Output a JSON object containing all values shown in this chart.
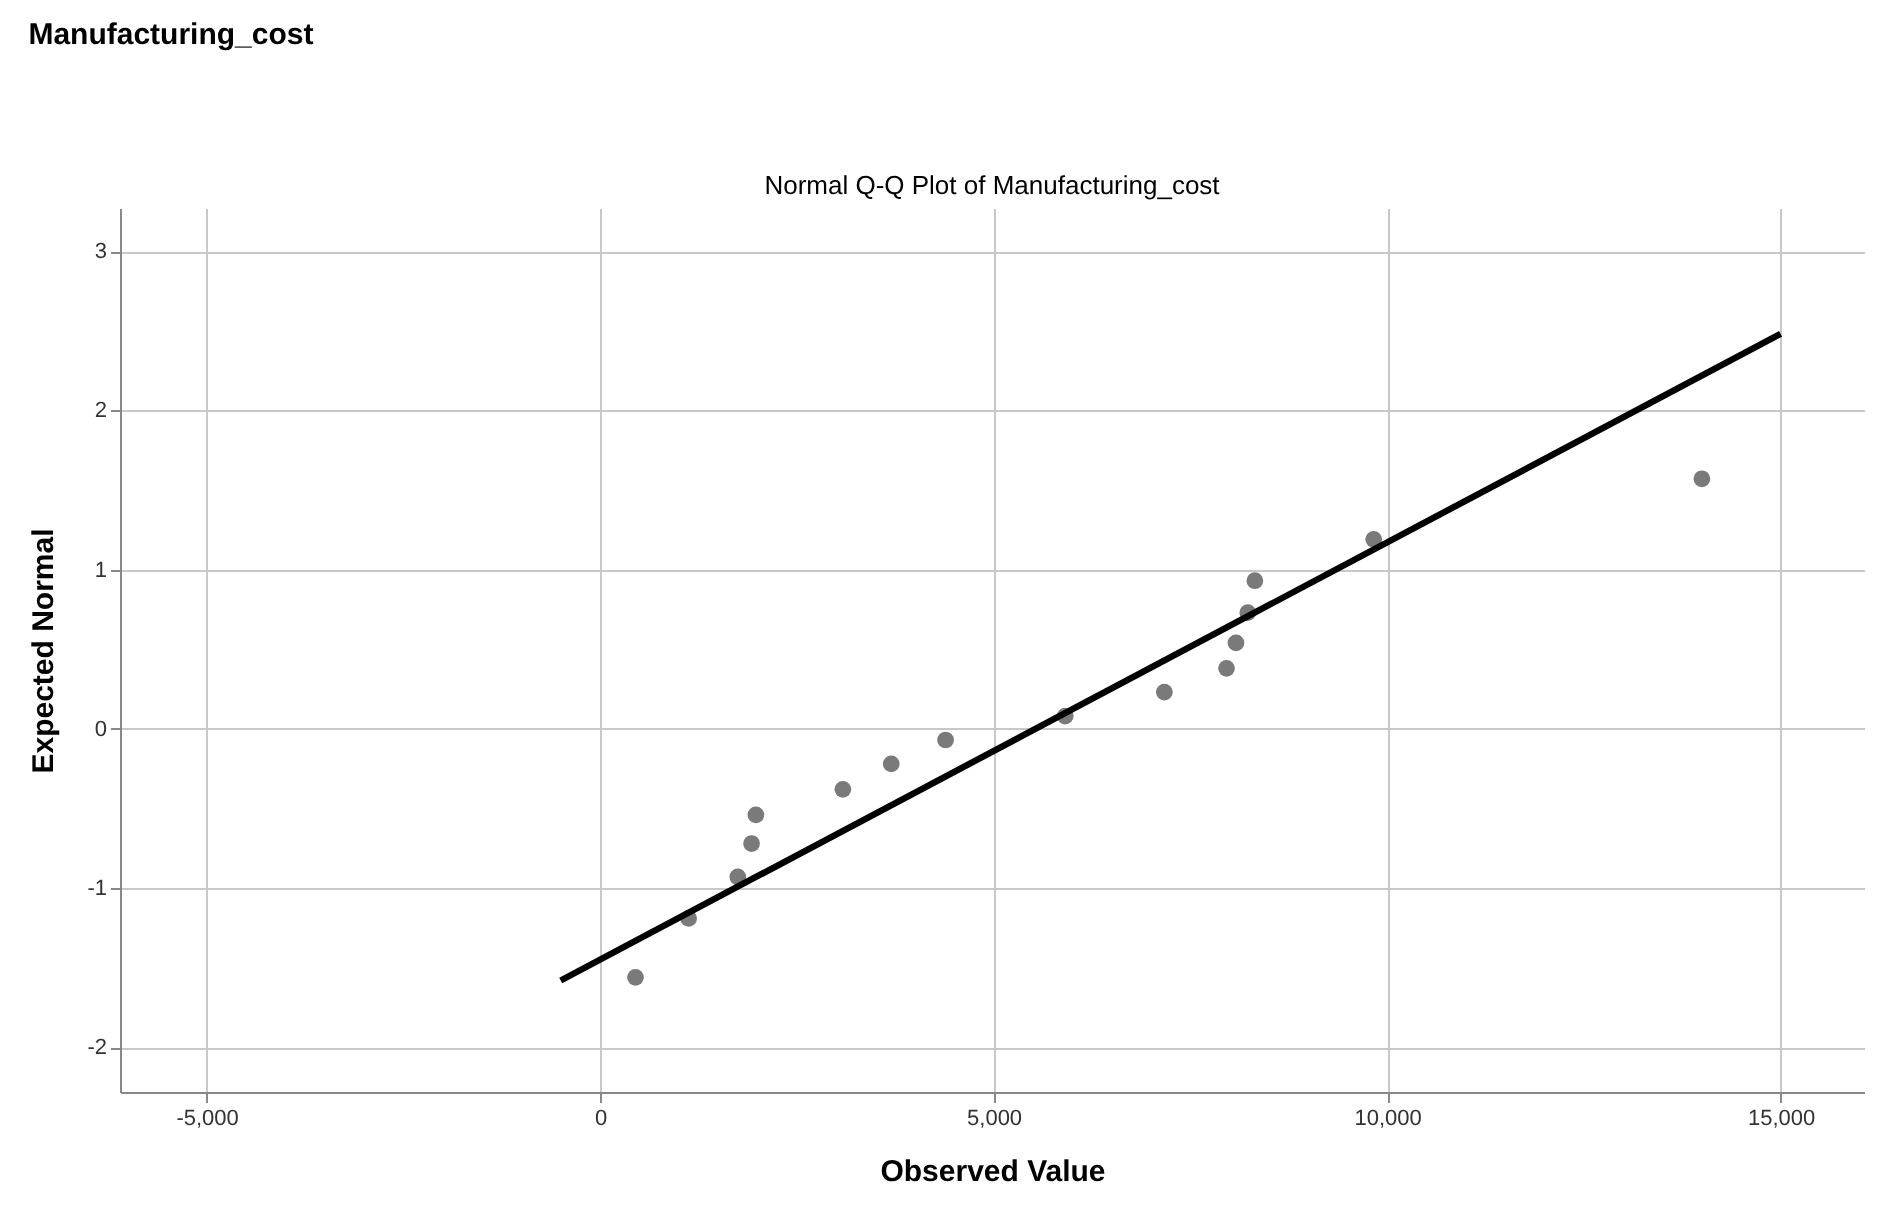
{
  "chart_data": {
    "type": "scatter",
    "title": "Manufacturing_cost",
    "subtitle": "Normal Q-Q Plot of Manufacturing_cost",
    "xlabel": "Observed Value",
    "ylabel": "Expected Normal",
    "xlim": [
      -6100,
      16060
    ],
    "ylim": [
      -2.28,
      3.27
    ],
    "xticks": [
      {
        "value": -5000,
        "label": "-5,000"
      },
      0,
      {
        "value": 5000,
        "label": "5,000"
      },
      {
        "value": 10000,
        "label": "10,000"
      },
      {
        "value": 15000,
        "label": "15,000"
      }
    ],
    "yticks": [
      -2,
      -1,
      0,
      1,
      2,
      3
    ],
    "grid": true,
    "marker": "circle",
    "series": [
      {
        "color": "#7a7a7a",
        "x": [
          450,
          1125,
          1750,
          1925,
          1980,
          3085,
          3700,
          4390,
          5910,
          7170,
          7960,
          8080,
          8230,
          8320,
          9830,
          14000
        ],
        "values": [
          -1.56,
          -1.19,
          -0.93,
          -0.72,
          -0.54,
          -0.38,
          -0.22,
          -0.07,
          0.08,
          0.23,
          0.38,
          0.54,
          0.73,
          0.93,
          1.19,
          1.57
        ]
      },
      {
        "type": "line",
        "color": "#000000",
        "line_style": "solid",
        "marker": "none",
        "x": [
          -500,
          15000
        ],
        "values": [
          -1.58,
          2.48
        ]
      }
    ]
  }
}
